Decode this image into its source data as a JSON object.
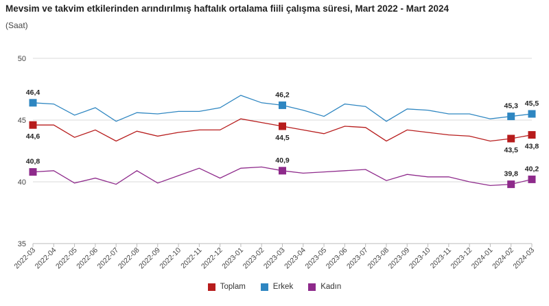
{
  "chart_data": {
    "type": "line",
    "title": "Mevsim ve takvim etkilerinden arındırılmış haftalık ortalama fiili çalışma süresi, Mart 2022 - Mart 2024",
    "subtitle": "(Saat)",
    "ylim": [
      35,
      50
    ],
    "yticks": [
      "35",
      "40",
      "45",
      "50"
    ],
    "grid": "horizontal",
    "legend_position": "bottom-center",
    "x": [
      "2022-03",
      "2022-04",
      "2022-05",
      "2022-06",
      "2022-07",
      "2022-08",
      "2022-09",
      "2022-10",
      "2022-11",
      "2022-12",
      "2023-01",
      "2023-02",
      "2023-03",
      "2023-04",
      "2023-05",
      "2023-06",
      "2023-07",
      "2023-08",
      "2023-09",
      "2023-10",
      "2023-11",
      "2023-12",
      "2024-01",
      "2024-02",
      "2024-03"
    ],
    "series": [
      {
        "name": "Toplam",
        "color": "#b71c1c",
        "values": [
          44.6,
          44.6,
          43.6,
          44.2,
          43.3,
          44.1,
          43.7,
          44.0,
          44.2,
          44.2,
          45.1,
          44.8,
          44.5,
          44.2,
          43.9,
          44.5,
          44.4,
          43.3,
          44.2,
          44.0,
          43.8,
          43.7,
          43.3,
          43.5,
          43.8
        ],
        "labels": [
          {
            "i": 0,
            "text": "44,6",
            "pos": "below"
          },
          {
            "i": 12,
            "text": "44,5",
            "pos": "below"
          },
          {
            "i": 23,
            "text": "43,5",
            "pos": "below"
          },
          {
            "i": 24,
            "text": "43,8",
            "pos": "below"
          }
        ]
      },
      {
        "name": "Erkek",
        "color": "#2e86c1",
        "values": [
          46.4,
          46.3,
          45.4,
          46.0,
          44.9,
          45.6,
          45.5,
          45.7,
          45.7,
          46.0,
          47.0,
          46.4,
          46.2,
          45.8,
          45.3,
          46.3,
          46.1,
          44.9,
          45.9,
          45.8,
          45.5,
          45.5,
          45.1,
          45.3,
          45.5
        ],
        "labels": [
          {
            "i": 0,
            "text": "46,4",
            "pos": "above"
          },
          {
            "i": 12,
            "text": "46,2",
            "pos": "above"
          },
          {
            "i": 23,
            "text": "45,3",
            "pos": "above"
          },
          {
            "i": 24,
            "text": "45,5",
            "pos": "above"
          }
        ]
      },
      {
        "name": "Kadın",
        "color": "#8e2a8b",
        "values": [
          40.8,
          40.9,
          39.9,
          40.3,
          39.8,
          40.9,
          39.9,
          40.5,
          41.1,
          40.3,
          41.1,
          41.2,
          40.9,
          40.7,
          40.8,
          40.9,
          41.0,
          40.1,
          40.6,
          40.4,
          40.4,
          40.0,
          39.7,
          39.8,
          40.2
        ],
        "labels": [
          {
            "i": 0,
            "text": "40,8",
            "pos": "above"
          },
          {
            "i": 12,
            "text": "40,9",
            "pos": "above"
          },
          {
            "i": 23,
            "text": "39,8",
            "pos": "above"
          },
          {
            "i": 24,
            "text": "40,2",
            "pos": "above"
          }
        ]
      }
    ],
    "marker_indices": [
      0,
      12,
      23,
      24
    ]
  }
}
